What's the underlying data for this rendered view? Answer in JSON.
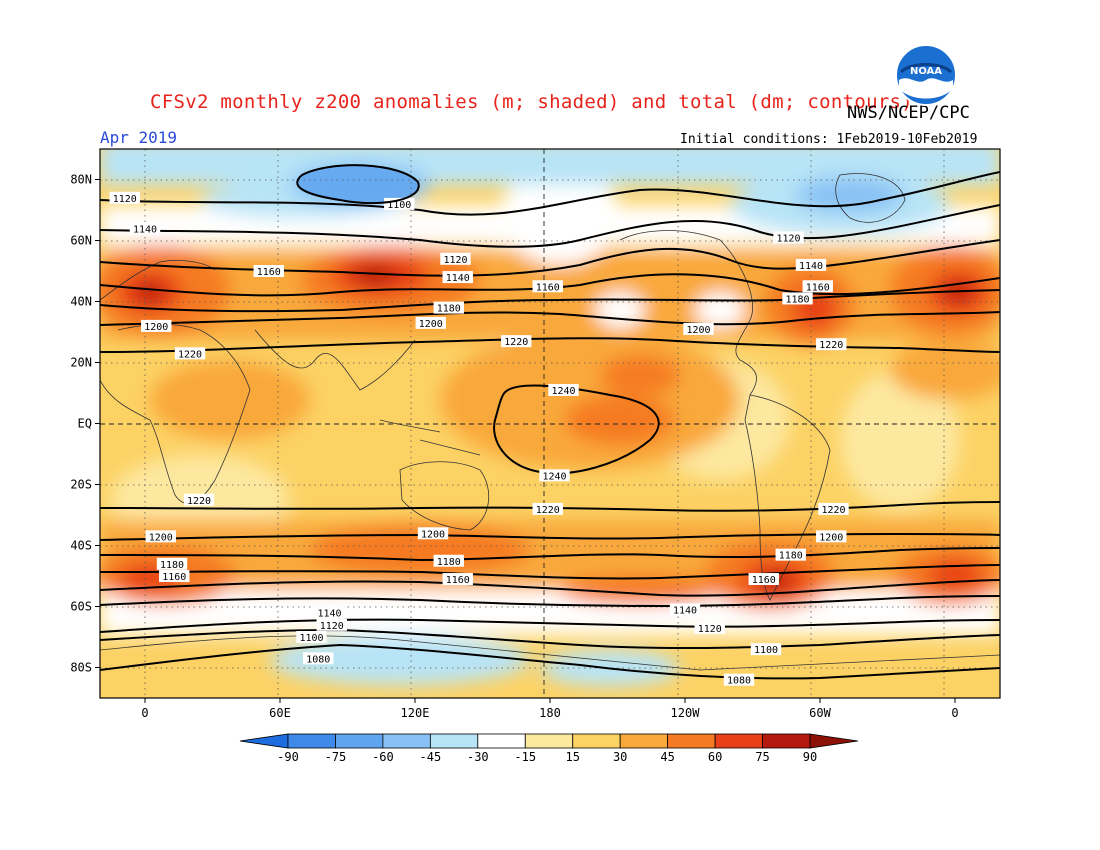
{
  "header": {
    "title": "CFSv2 monthly z200 anomalies (m; shaded) and total (dm; contours)",
    "agency": "NWS/NCEP/CPC",
    "month": "Apr 2019",
    "initial_conditions": "Initial conditions: 1Feb2019-10Feb2019",
    "logo_text": "NOAA"
  },
  "map": {
    "lat_labels": [
      "80N",
      "60N",
      "40N",
      "20N",
      "EQ",
      "20S",
      "40S",
      "60S",
      "80S"
    ],
    "lat_values": [
      80,
      60,
      40,
      20,
      0,
      -20,
      -40,
      -60,
      -80
    ],
    "lon_labels": [
      "0",
      "60E",
      "120E",
      "180",
      "120W",
      "60W",
      "0"
    ],
    "lon_values": [
      0,
      60,
      120,
      180,
      240,
      300,
      360
    ],
    "lon_range": [
      -20,
      380
    ],
    "lat_range": [
      -90,
      90
    ]
  },
  "colorbar": {
    "ticks": [
      "-90",
      "-75",
      "-60",
      "-45",
      "-30",
      "-15",
      "15",
      "30",
      "45",
      "60",
      "75",
      "90"
    ],
    "colors": [
      "#1e6de0",
      "#3f8ae8",
      "#5fa4ee",
      "#88c2f4",
      "#b8e4f7",
      "#ffffff",
      "#fde8a0",
      "#fcd265",
      "#f9a83a",
      "#f57a24",
      "#e84018",
      "#b51a10",
      "#8c1208"
    ]
  },
  "contours": [
    {
      "label": "1080",
      "positions": [
        {
          "lon": 77,
          "lat": -77
        },
        {
          "lon": 264,
          "lat": -84
        }
      ]
    },
    {
      "label": "1100",
      "positions": [
        {
          "lon": 113,
          "lat": 72
        },
        {
          "lon": 74,
          "lat": -70
        },
        {
          "lon": 276,
          "lat": -74
        }
      ]
    },
    {
      "label": "1120",
      "positions": [
        {
          "lon": -9,
          "lat": 74
        },
        {
          "lon": 138,
          "lat": 54
        },
        {
          "lon": 83,
          "lat": -66
        },
        {
          "lon": 251,
          "lat": -67
        },
        {
          "lon": 286,
          "lat": 61
        }
      ]
    },
    {
      "label": "1140",
      "positions": [
        {
          "lon": 0,
          "lat": 64
        },
        {
          "lon": 139,
          "lat": 48
        },
        {
          "lon": 82,
          "lat": -62
        },
        {
          "lon": 240,
          "lat": -61
        },
        {
          "lon": 296,
          "lat": 52
        }
      ]
    },
    {
      "label": "1160",
      "positions": [
        {
          "lon": 55,
          "lat": 50
        },
        {
          "lon": 179,
          "lat": 45
        },
        {
          "lon": 13,
          "lat": -50
        },
        {
          "lon": 139,
          "lat": -51
        },
        {
          "lon": 275,
          "lat": -51
        },
        {
          "lon": 299,
          "lat": 45
        }
      ]
    },
    {
      "label": "1180",
      "positions": [
        {
          "lon": 135,
          "lat": 38
        },
        {
          "lon": 12,
          "lat": -46
        },
        {
          "lon": 135,
          "lat": -45
        },
        {
          "lon": 290,
          "lat": 41
        },
        {
          "lon": 287,
          "lat": -43
        }
      ]
    },
    {
      "label": "1200",
      "positions": [
        {
          "lon": 5,
          "lat": 32
        },
        {
          "lon": 127,
          "lat": 33
        },
        {
          "lon": 7,
          "lat": -37
        },
        {
          "lon": 128,
          "lat": -36
        },
        {
          "lon": 246,
          "lat": 31
        },
        {
          "lon": 305,
          "lat": -37
        }
      ]
    },
    {
      "label": "1220",
      "positions": [
        {
          "lon": 20,
          "lat": 23
        },
        {
          "lon": 165,
          "lat": 27
        },
        {
          "lon": 24,
          "lat": -25
        },
        {
          "lon": 179,
          "lat": -28
        },
        {
          "lon": 305,
          "lat": 26
        },
        {
          "lon": 306,
          "lat": -28
        }
      ]
    },
    {
      "label": "1240",
      "positions": [
        {
          "lon": 186,
          "lat": 11
        },
        {
          "lon": 182,
          "lat": -17
        }
      ]
    }
  ]
}
